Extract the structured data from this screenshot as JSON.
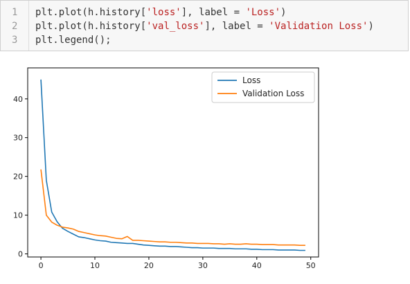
{
  "code": {
    "lines": [
      {
        "num": "1",
        "segments": [
          {
            "text": "plt.plot(h.history[",
            "type": "plain"
          },
          {
            "text": "'loss'",
            "type": "string"
          },
          {
            "text": "], label = ",
            "type": "plain"
          },
          {
            "text": "'Loss'",
            "type": "string"
          },
          {
            "text": ")",
            "type": "plain"
          }
        ]
      },
      {
        "num": "2",
        "segments": [
          {
            "text": "plt.plot(h.history[",
            "type": "plain"
          },
          {
            "text": "'val_loss'",
            "type": "string"
          },
          {
            "text": "], label = ",
            "type": "plain"
          },
          {
            "text": "'Validation Loss'",
            "type": "string"
          },
          {
            "text": ")",
            "type": "plain"
          }
        ]
      },
      {
        "num": "3",
        "segments": [
          {
            "text": "plt.legend();",
            "type": "plain"
          }
        ]
      }
    ]
  },
  "chart_data": {
    "type": "line",
    "title": "",
    "xlabel": "",
    "ylabel": "",
    "xlim": [
      -2.45,
      51.45
    ],
    "ylim": [
      -0.8,
      48
    ],
    "xticks": [
      0,
      10,
      20,
      30,
      40,
      50
    ],
    "yticks": [
      0,
      10,
      20,
      30,
      40
    ],
    "legend_position": "top-right",
    "grid": false,
    "series": [
      {
        "name": "Loss",
        "color": "#1f77b4",
        "x": [
          0,
          1,
          2,
          3,
          4,
          5,
          6,
          7,
          8,
          9,
          10,
          11,
          12,
          13,
          14,
          15,
          16,
          17,
          18,
          19,
          20,
          21,
          22,
          23,
          24,
          25,
          26,
          27,
          28,
          29,
          30,
          31,
          32,
          33,
          34,
          35,
          36,
          37,
          38,
          39,
          40,
          41,
          42,
          43,
          44,
          45,
          46,
          47,
          48,
          49
        ],
        "values": [
          45.0,
          19.0,
          10.8,
          8.3,
          6.6,
          5.8,
          5.1,
          4.4,
          4.2,
          3.9,
          3.6,
          3.4,
          3.3,
          3.0,
          2.9,
          2.8,
          2.7,
          2.7,
          2.5,
          2.3,
          2.2,
          2.1,
          2.0,
          2.0,
          1.9,
          1.9,
          1.8,
          1.7,
          1.6,
          1.6,
          1.5,
          1.5,
          1.5,
          1.4,
          1.4,
          1.4,
          1.3,
          1.3,
          1.3,
          1.2,
          1.2,
          1.1,
          1.1,
          1.1,
          1.0,
          1.0,
          1.0,
          1.0,
          0.9,
          0.9
        ]
      },
      {
        "name": "Validation Loss",
        "color": "#ff7f0e",
        "x": [
          0,
          1,
          2,
          3,
          4,
          5,
          6,
          7,
          8,
          9,
          10,
          11,
          12,
          13,
          14,
          15,
          16,
          17,
          18,
          19,
          20,
          21,
          22,
          23,
          24,
          25,
          26,
          27,
          28,
          29,
          30,
          31,
          32,
          33,
          34,
          35,
          36,
          37,
          38,
          39,
          40,
          41,
          42,
          43,
          44,
          45,
          46,
          47,
          48,
          49
        ],
        "values": [
          21.8,
          10.0,
          8.2,
          7.4,
          6.9,
          6.7,
          6.4,
          5.8,
          5.5,
          5.2,
          4.9,
          4.7,
          4.6,
          4.3,
          4.0,
          3.9,
          4.5,
          3.5,
          3.5,
          3.4,
          3.3,
          3.2,
          3.1,
          3.1,
          3.0,
          3.0,
          2.9,
          2.8,
          2.8,
          2.7,
          2.7,
          2.7,
          2.6,
          2.6,
          2.5,
          2.6,
          2.5,
          2.5,
          2.6,
          2.5,
          2.5,
          2.4,
          2.4,
          2.4,
          2.3,
          2.3,
          2.3,
          2.3,
          2.2,
          2.2
        ]
      }
    ]
  }
}
